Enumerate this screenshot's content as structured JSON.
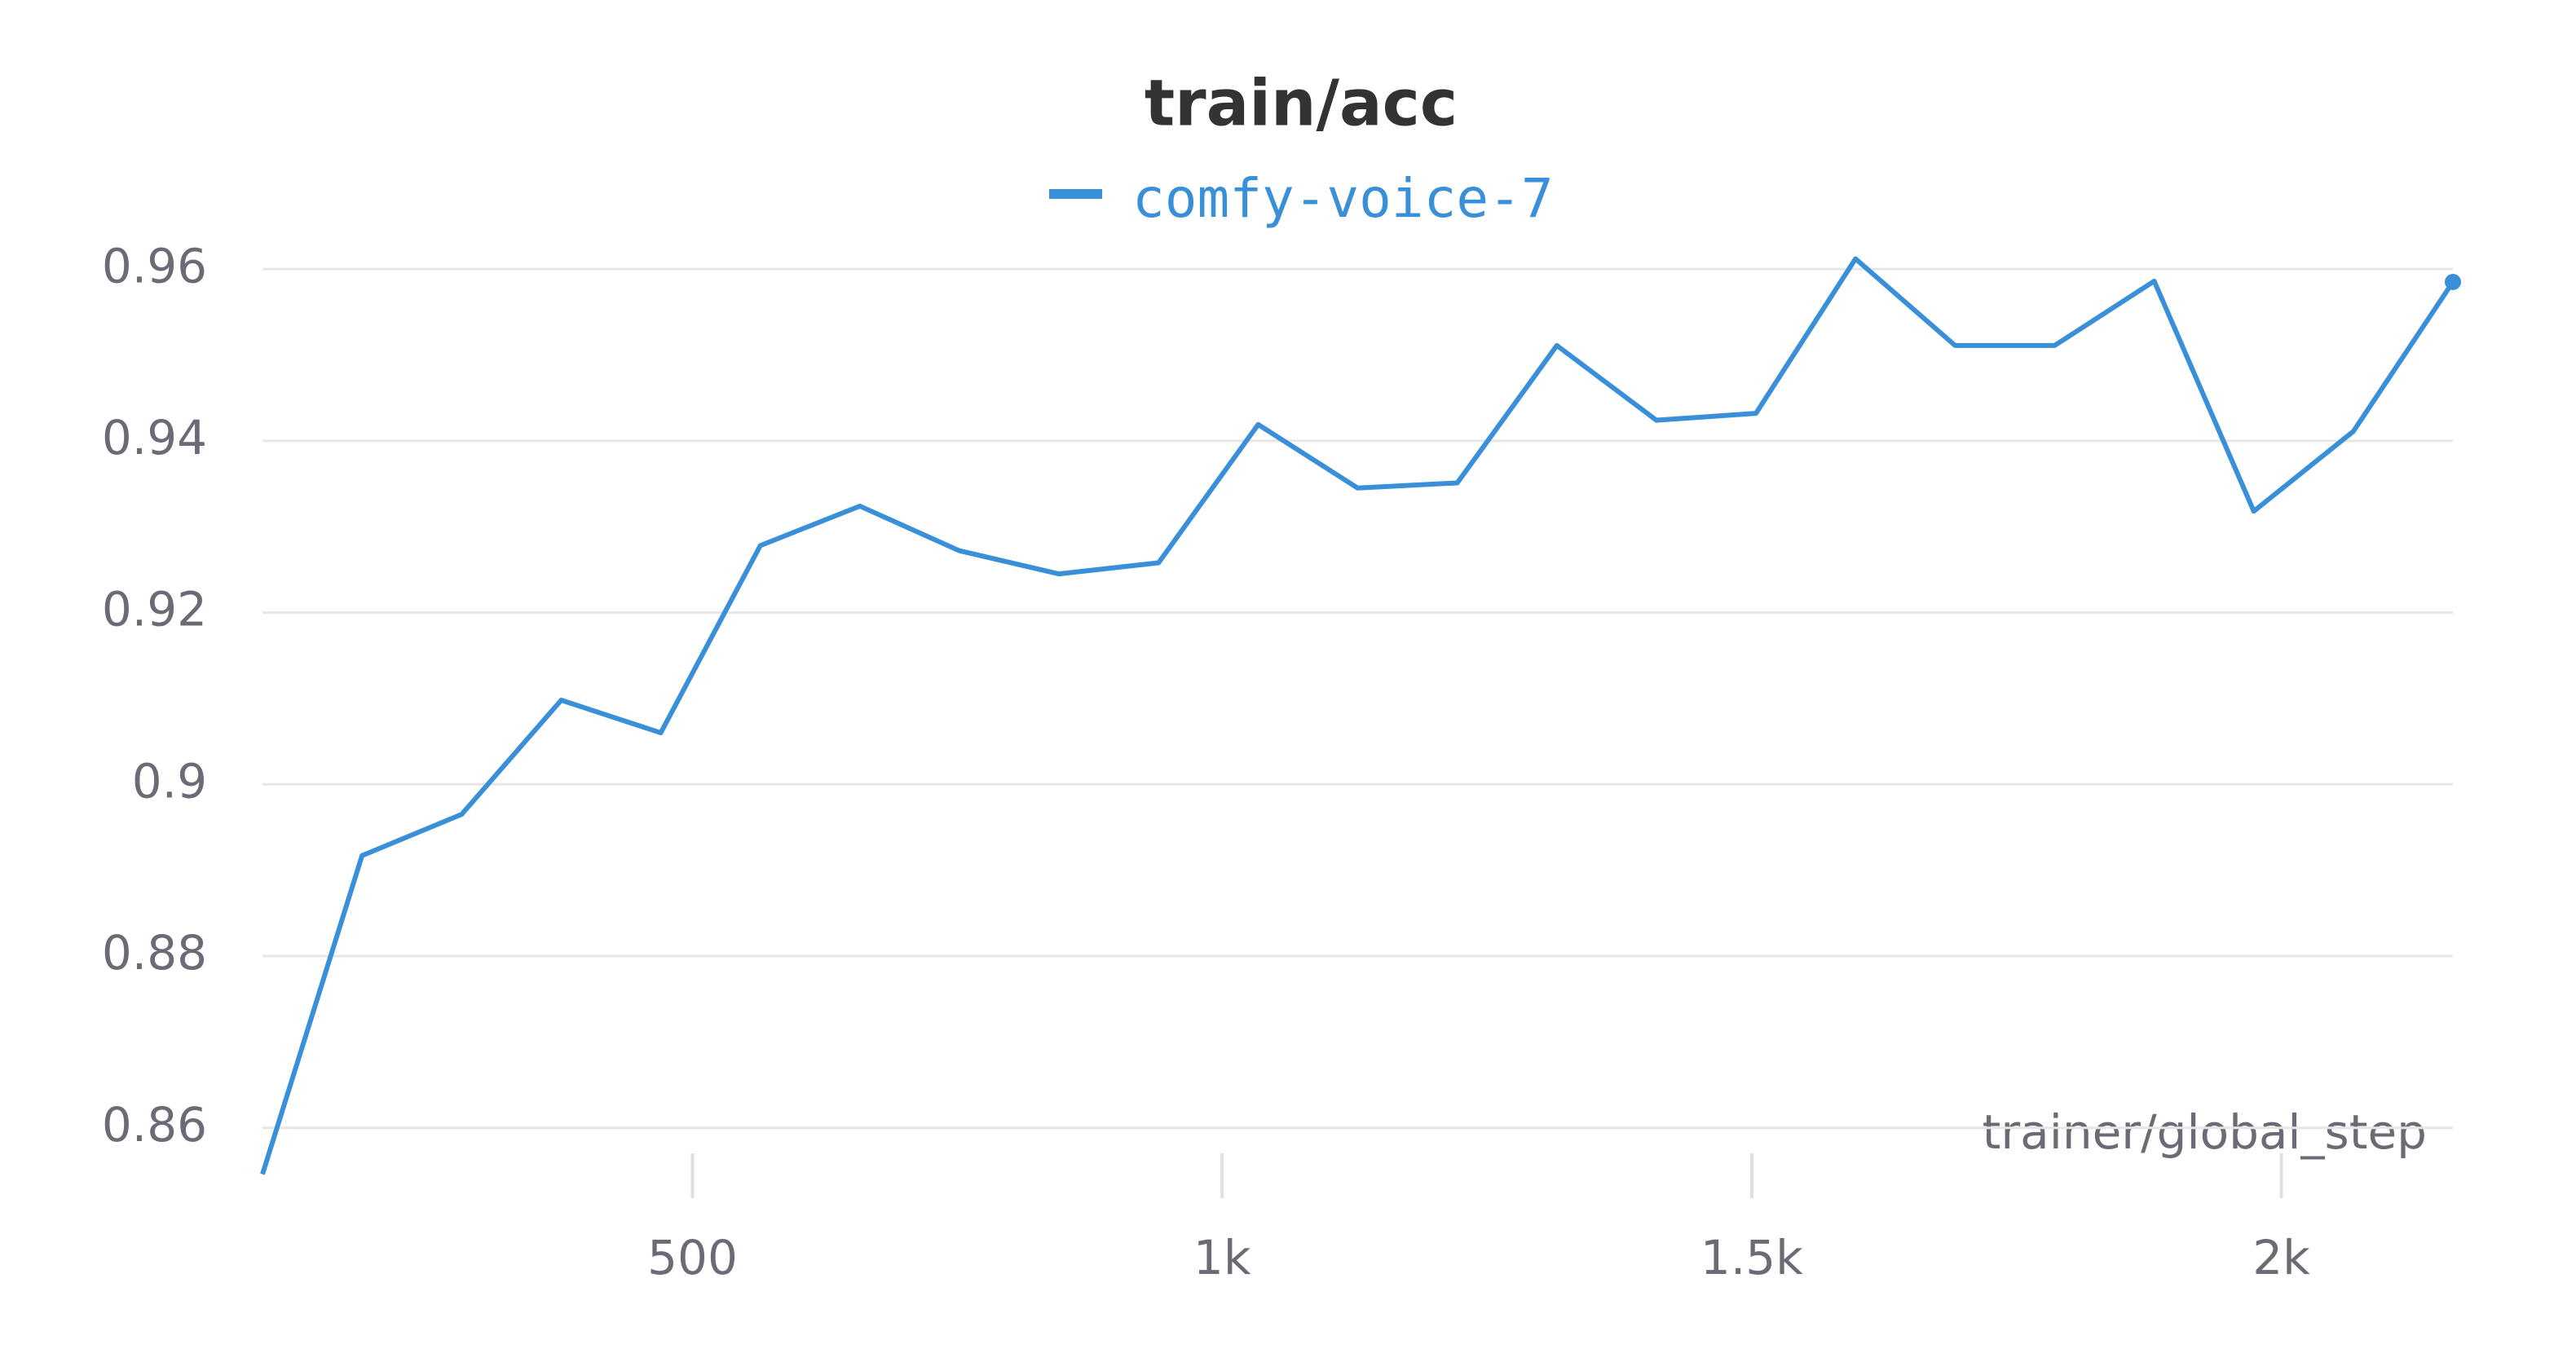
{
  "chart_data": {
    "type": "line",
    "title": "train/acc",
    "x_label": "trainer/global_step",
    "x": [
      94,
      188,
      282,
      376,
      470,
      564,
      658,
      752,
      846,
      940,
      1034,
      1128,
      1222,
      1316,
      1410,
      1504,
      1598,
      1692,
      1786,
      1880,
      1974,
      2068,
      2162
    ],
    "series": [
      {
        "name": "comfy-voice-7",
        "color": "#3a8fd9",
        "values": [
          0.8546,
          0.8917,
          0.8965,
          0.9098,
          0.906,
          0.9278,
          0.9324,
          0.9272,
          0.9245,
          0.9258,
          0.9419,
          0.9345,
          0.9351,
          0.9511,
          0.9424,
          0.9432,
          0.9612,
          0.9511,
          0.9511,
          0.9586,
          0.9318,
          0.9411,
          0.9585
        ]
      }
    ],
    "xlim": [
      94,
      2162
    ],
    "xticks": [
      500,
      {
        "value": 1000,
        "label": "1k"
      },
      {
        "value": 1500,
        "label": "1.5k"
      },
      {
        "value": 2000,
        "label": "2k"
      }
    ],
    "ylim": [
      0.852,
      0.964
    ],
    "yticks": [
      0.86,
      0.88,
      {
        "value": 0.9,
        "label": "0.9"
      },
      0.92,
      0.94,
      0.96
    ],
    "grid": true
  }
}
